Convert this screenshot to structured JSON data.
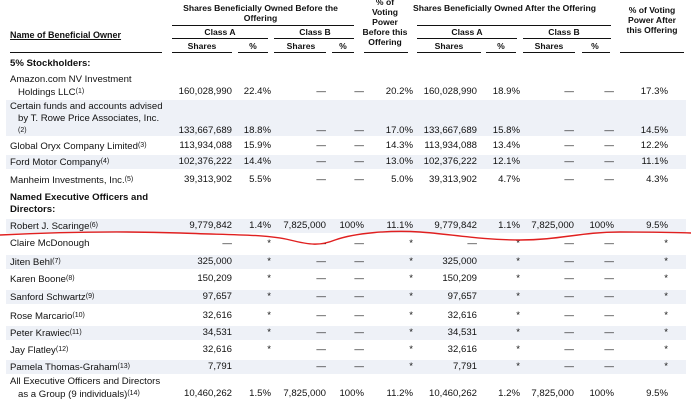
{
  "headers": {
    "name": "Name of Beneficial Owner",
    "before": "Shares Beneficially Owned Before the Offering",
    "voting_before": "% of Voting Power Before this Offering",
    "after": "Shares Beneficially Owned After the Offering",
    "voting_after": "% of Voting Power After this Offering",
    "class_a": "Class A",
    "class_b": "Class B",
    "shares": "Shares",
    "pct": "%"
  },
  "sections": {
    "stockholders": "5% Stockholders:",
    "officers_line1": "Named Executive Officers and",
    "officers_line2": "Directors:"
  },
  "rows": [
    {
      "name": [
        "Amazon.com NV Investment",
        "Holdings LLC"
      ],
      "fn": "(1)",
      "a": "160,028,990",
      "ap": "22.4%",
      "b": "—",
      "bp": "—",
      "vb": "20.2%",
      "a2": "160,028,990",
      "ap2": "18.9%",
      "b2": "—",
      "bp2": "—",
      "va": "17.3%"
    },
    {
      "name": [
        "Certain funds and accounts advised",
        "by T. Rowe Price Associates, Inc.",
        ""
      ],
      "fn": "(2)",
      "a": "133,667,689",
      "ap": "18.8%",
      "b": "—",
      "bp": "—",
      "vb": "17.0%",
      "a2": "133,667,689",
      "ap2": "15.8%",
      "b2": "—",
      "bp2": "—",
      "va": "14.5%"
    },
    {
      "name": [
        "Global Oryx Company Limited"
      ],
      "fn": "(3)",
      "a": "113,934,088",
      "ap": "15.9%",
      "b": "—",
      "bp": "—",
      "vb": "14.3%",
      "a2": "113,934,088",
      "ap2": "13.4%",
      "b2": "—",
      "bp2": "—",
      "va": "12.2%"
    },
    {
      "name": [
        "Ford Motor Company"
      ],
      "fn": "(4)",
      "a": "102,376,222",
      "ap": "14.4%",
      "b": "—",
      "bp": "—",
      "vb": "13.0%",
      "a2": "102,376,222",
      "ap2": "12.1%",
      "b2": "—",
      "bp2": "—",
      "va": "11.1%"
    },
    {
      "name": [
        "Manheim Investments, Inc."
      ],
      "fn": "(5)",
      "a": "39,313,902",
      "ap": "5.5%",
      "b": "—",
      "bp": "—",
      "vb": "5.0%",
      "a2": "39,313,902",
      "ap2": "4.7%",
      "b2": "—",
      "bp2": "—",
      "va": "4.3%"
    },
    {
      "name": [
        "Robert J. Scaringe"
      ],
      "fn": "(6)",
      "a": "9,779,842",
      "ap": "1.4%",
      "b": "7,825,000",
      "bp": "100%",
      "vb": "11.1%",
      "a2": "9,779,842",
      "ap2": "1.1%",
      "b2": "7,825,000",
      "bp2": "100%",
      "va": "9.5%"
    },
    {
      "name": [
        "Claire McDonough"
      ],
      "fn": "",
      "a": "—",
      "ap": "*",
      "b": "—",
      "bp": "—",
      "vb": "*",
      "a2": "—",
      "ap2": "*",
      "b2": "—",
      "bp2": "—",
      "va": "*"
    },
    {
      "name": [
        "Jiten Behl"
      ],
      "fn": "(7)",
      "a": "325,000",
      "ap": "*",
      "b": "—",
      "bp": "—",
      "vb": "*",
      "a2": "325,000",
      "ap2": "*",
      "b2": "—",
      "bp2": "—",
      "va": "*"
    },
    {
      "name": [
        "Karen Boone"
      ],
      "fn": "(8)",
      "a": "150,209",
      "ap": "*",
      "b": "—",
      "bp": "—",
      "vb": "*",
      "a2": "150,209",
      "ap2": "*",
      "b2": "—",
      "bp2": "—",
      "va": "*"
    },
    {
      "name": [
        "Sanford Schwartz"
      ],
      "fn": "(9)",
      "a": "97,657",
      "ap": "*",
      "b": "—",
      "bp": "—",
      "vb": "*",
      "a2": "97,657",
      "ap2": "*",
      "b2": "—",
      "bp2": "—",
      "va": "*"
    },
    {
      "name": [
        "Rose Marcario"
      ],
      "fn": "(10)",
      "a": "32,616",
      "ap": "*",
      "b": "—",
      "bp": "—",
      "vb": "*",
      "a2": "32,616",
      "ap2": "*",
      "b2": "—",
      "bp2": "—",
      "va": "*"
    },
    {
      "name": [
        "Peter Krawiec"
      ],
      "fn": "(11)",
      "a": "34,531",
      "ap": "*",
      "b": "—",
      "bp": "—",
      "vb": "*",
      "a2": "34,531",
      "ap2": "*",
      "b2": "—",
      "bp2": "—",
      "va": "*"
    },
    {
      "name": [
        "Jay Flatley"
      ],
      "fn": "(12)",
      "a": "32,616",
      "ap": "*",
      "b": "—",
      "bp": "—",
      "vb": "*",
      "a2": "32,616",
      "ap2": "*",
      "b2": "—",
      "bp2": "—",
      "va": "*"
    },
    {
      "name": [
        "Pamela Thomas-Graham"
      ],
      "fn": "(13)",
      "a": "7,791",
      "ap": "",
      "b": "—",
      "bp": "—",
      "vb": "*",
      "a2": "7,791",
      "ap2": "*",
      "b2": "—",
      "bp2": "—",
      "va": "*"
    },
    {
      "name": [
        "All Executive Officers and Directors",
        "as a Group (9 individuals)"
      ],
      "fn": "(14)",
      "a": "10,460,262",
      "ap": "1.5%",
      "b": "7,825,000",
      "bp": "100%",
      "vb": "11.2%",
      "a2": "10,460,262",
      "ap2": "1.2%",
      "b2": "7,825,000",
      "bp2": "100%",
      "va": "9.5%"
    }
  ],
  "colors": {
    "row_shade": "#eef1f7",
    "annotation": "#e02020"
  }
}
